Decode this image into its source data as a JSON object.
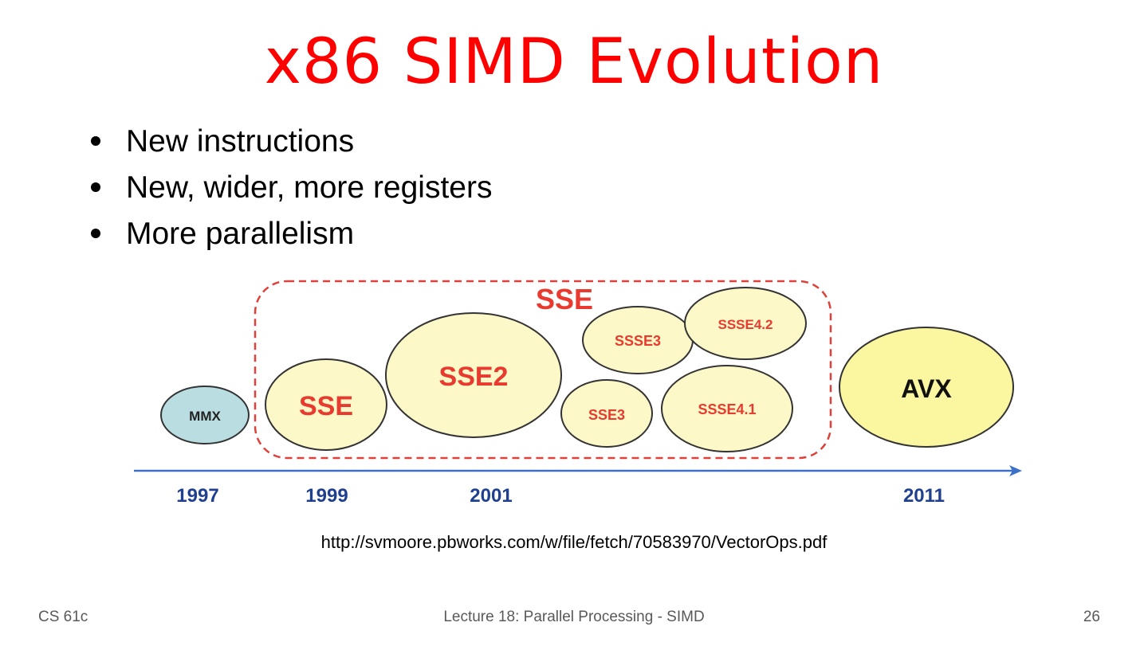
{
  "slide": {
    "title": "x86 SIMD Evolution",
    "bullets": [
      "New instructions",
      "New, wider, more registers",
      "More parallelism"
    ],
    "source_url": "http://svmoore.pbworks.com/w/file/fetch/70583970/VectorOps.pdf"
  },
  "diagram": {
    "group_label": "SSE",
    "extensions": [
      "MMX",
      "SSE",
      "SSE2",
      "SSE3",
      "SSSE3",
      "SSSE4.1",
      "SSSE4.2",
      "AVX"
    ],
    "years": [
      "1997",
      "1999",
      "2001",
      "2011"
    ],
    "colors": {
      "mmx_fill": "#b9dde0",
      "sse_fill": "#fcf8c8",
      "avx_fill": "#fbf6a0",
      "group_border": "#e0403a",
      "label_red": "#e83a2e",
      "axis": "#3b6fc8",
      "year_label": "#1f3f8f"
    }
  },
  "footer": {
    "course": "CS 61c",
    "lecture": "Lecture 18: Parallel Processing - SIMD",
    "page_number": "26"
  }
}
